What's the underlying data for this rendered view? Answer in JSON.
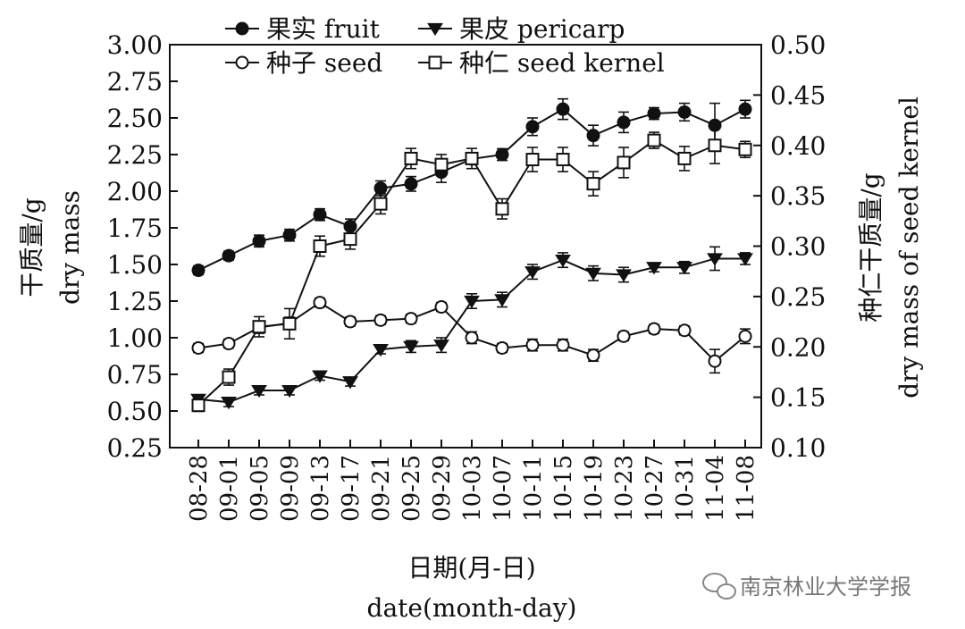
{
  "chart_data": {
    "type": "line",
    "x": [
      "08-28",
      "09-01",
      "09-05",
      "09-09",
      "09-13",
      "09-17",
      "09-21",
      "09-25",
      "09-29",
      "10-03",
      "10-07",
      "10-11",
      "10-15",
      "10-19",
      "10-23",
      "10-27",
      "10-31",
      "11-04",
      "11-08"
    ],
    "xlabel": [
      "日期(月-日)",
      "date(month-day)"
    ],
    "ylabel_left": [
      "干质量/g",
      "dry mass"
    ],
    "ylabel_right": [
      "种仁干质量/g",
      "dry mass of seed kernel"
    ],
    "y_left": {
      "range": [
        0.25,
        3.0
      ],
      "ticks": [
        "0.25",
        "0.50",
        "0.75",
        "1.00",
        "1.25",
        "1.50",
        "1.75",
        "2.00",
        "2.25",
        "2.50",
        "2.75",
        "3.00"
      ]
    },
    "y_right": {
      "range": [
        0.1,
        0.5
      ],
      "ticks": [
        "0.10",
        "0.15",
        "0.20",
        "0.25",
        "0.30",
        "0.35",
        "0.40",
        "0.45",
        "0.50"
      ]
    },
    "series": [
      {
        "name": "果实 fruit",
        "axis": "left",
        "marker": "filled-circle",
        "values": [
          1.46,
          1.56,
          1.66,
          1.7,
          1.84,
          1.76,
          2.02,
          2.05,
          2.13,
          2.22,
          2.25,
          2.44,
          2.56,
          2.38,
          2.47,
          2.53,
          2.54,
          2.45,
          2.56
        ],
        "errors": [
          0.03,
          0.03,
          0.04,
          0.04,
          0.04,
          0.05,
          0.05,
          0.05,
          0.07,
          0.03,
          0.04,
          0.06,
          0.07,
          0.07,
          0.07,
          0.04,
          0.06,
          0.15,
          0.06
        ]
      },
      {
        "name": "果皮 pericarp",
        "axis": "left",
        "marker": "filled-triangle-down",
        "values": [
          0.58,
          0.56,
          0.64,
          0.64,
          0.74,
          0.7,
          0.92,
          0.94,
          0.95,
          1.25,
          1.26,
          1.45,
          1.53,
          1.44,
          1.43,
          1.48,
          1.48,
          1.54,
          1.54
        ],
        "errors": [
          0.03,
          0.03,
          0.03,
          0.03,
          0.03,
          0.03,
          0.03,
          0.04,
          0.05,
          0.05,
          0.05,
          0.05,
          0.05,
          0.05,
          0.05,
          0.03,
          0.04,
          0.08,
          0.04
        ]
      },
      {
        "name": "种子 seed",
        "axis": "left",
        "marker": "open-circle",
        "values": [
          0.93,
          0.96,
          1.07,
          1.1,
          1.24,
          1.11,
          1.12,
          1.13,
          1.21,
          1.0,
          0.93,
          0.95,
          0.95,
          0.88,
          1.01,
          1.06,
          1.05,
          0.84,
          1.01
        ],
        "errors": [
          0.03,
          0.03,
          0.04,
          0.04,
          0.03,
          0.03,
          0.03,
          0.03,
          0.03,
          0.04,
          0.03,
          0.04,
          0.04,
          0.04,
          0.03,
          0.03,
          0.03,
          0.08,
          0.05
        ]
      },
      {
        "name": "种仁 seed kernel",
        "axis": "right",
        "marker": "open-square",
        "values": [
          0.142,
          0.17,
          0.22,
          0.223,
          0.3,
          0.307,
          0.342,
          0.387,
          0.381,
          0.387,
          0.337,
          0.386,
          0.386,
          0.362,
          0.383,
          0.405,
          0.387,
          0.4,
          0.396
        ],
        "errors": [
          0.006,
          0.008,
          0.01,
          0.015,
          0.01,
          0.01,
          0.01,
          0.01,
          0.01,
          0.01,
          0.01,
          0.012,
          0.012,
          0.012,
          0.015,
          0.008,
          0.012,
          0.018,
          0.008
        ]
      }
    ],
    "legend_position": "top",
    "grid": false
  },
  "watermark": {
    "text": "南京林业大学学报",
    "icon": "wechat-icon"
  }
}
